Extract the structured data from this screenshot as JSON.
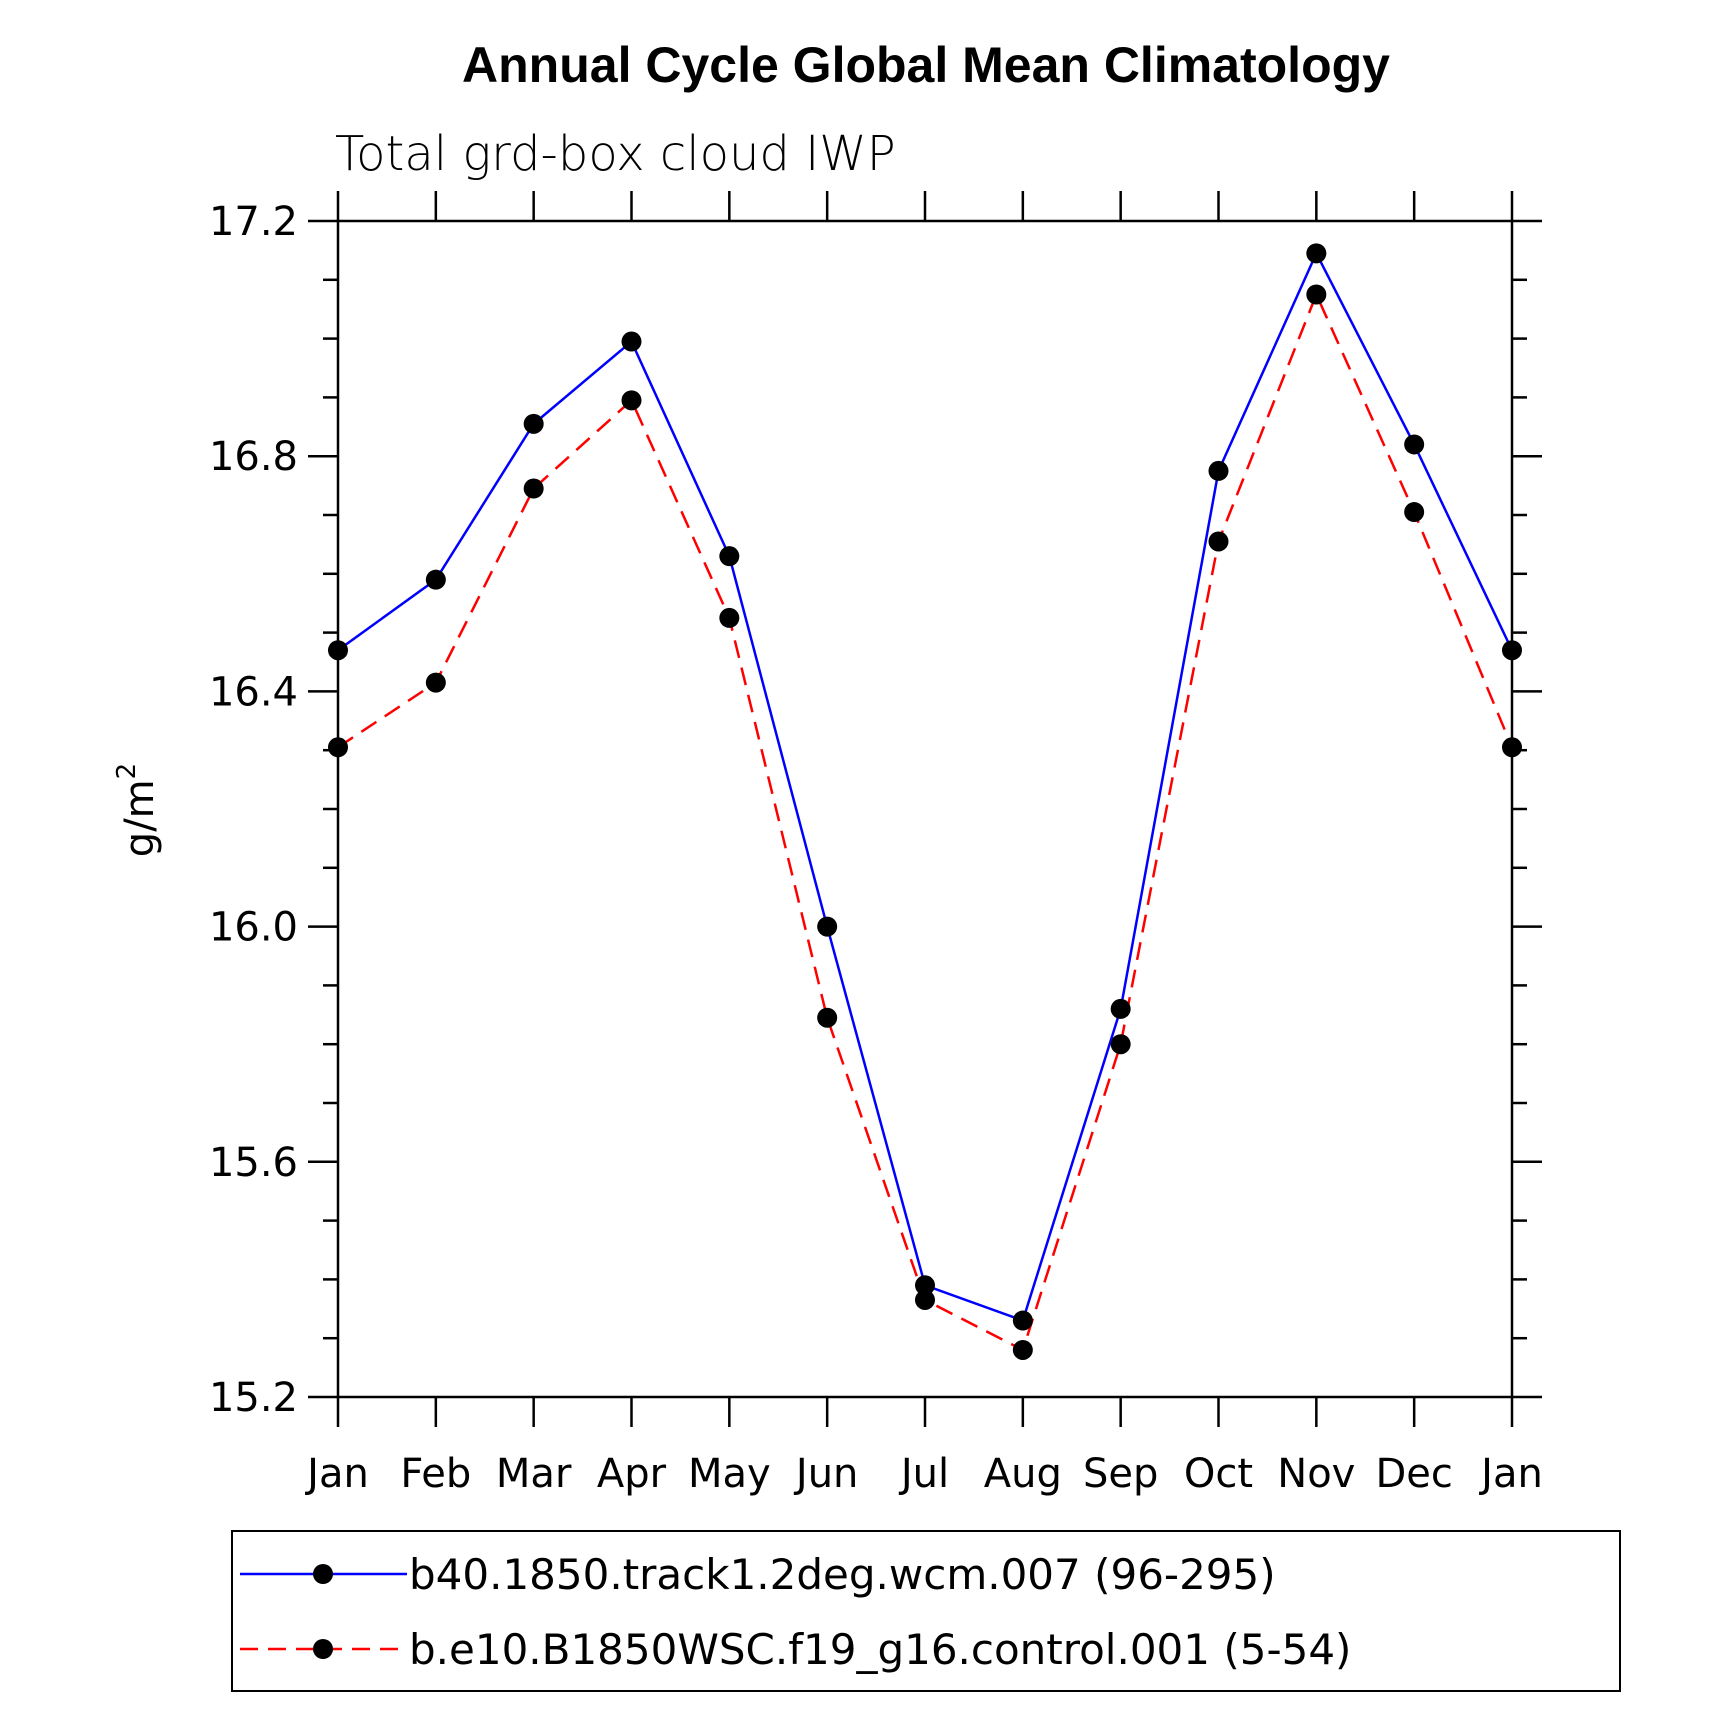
{
  "chart_data": {
    "type": "line",
    "title": "Annual Cycle Global Mean Climatology",
    "subtitle": "Total grd-box cloud IWP",
    "ylabel": "g/m",
    "ylabel_superscript": "2",
    "xlabel": "",
    "categories": [
      "Jan",
      "Feb",
      "Mar",
      "Apr",
      "May",
      "Jun",
      "Jul",
      "Aug",
      "Sep",
      "Oct",
      "Nov",
      "Dec",
      "Jan"
    ],
    "ylim": [
      15.2,
      17.2
    ],
    "yticks": [
      15.2,
      15.6,
      16.0,
      16.4,
      16.8,
      17.2
    ],
    "ytick_labels": [
      "15.2",
      "15.6",
      "16.0",
      "16.4",
      "16.8",
      "17.2"
    ],
    "grid": false,
    "legend_position": "bottom",
    "series": [
      {
        "name": "b40.1850.track1.2deg.wcm.007 (96-295)",
        "color": "#0000ff",
        "style": "solid",
        "marker": "filled-circle",
        "values": [
          16.47,
          16.59,
          16.855,
          16.995,
          16.63,
          16.0,
          15.39,
          15.33,
          15.86,
          16.775,
          17.145,
          16.82,
          16.47
        ]
      },
      {
        "name": "b.e10.B1850WSC.f19_g16.control.001 (5-54)",
        "color": "#ff0000",
        "style": "dashed",
        "marker": "filled-circle",
        "values": [
          16.305,
          16.415,
          16.745,
          16.895,
          16.525,
          15.845,
          15.365,
          15.28,
          15.8,
          16.655,
          17.075,
          16.705,
          16.305
        ]
      }
    ]
  }
}
